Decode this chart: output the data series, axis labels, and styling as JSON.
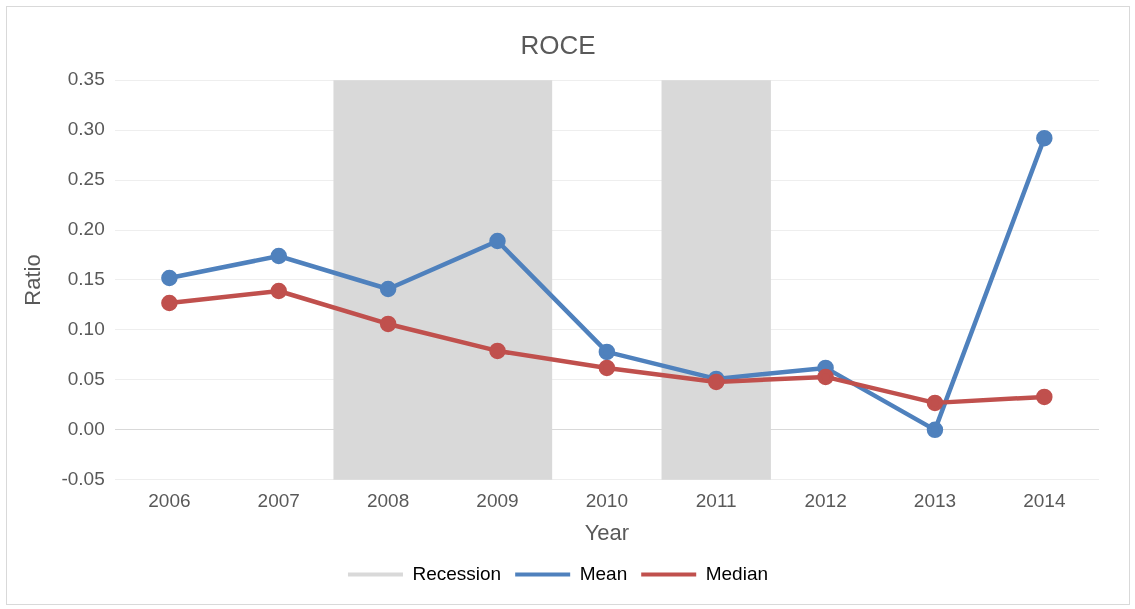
{
  "chart_data": {
    "type": "line",
    "title": "ROCE",
    "xlabel": "Year",
    "ylabel": "Ratio",
    "categories": [
      "2006",
      "2007",
      "2008",
      "2009",
      "2010",
      "2011",
      "2012",
      "2013",
      "2014"
    ],
    "series": [
      {
        "name": "Mean",
        "color": "#4f81bd",
        "values": [
          0.152,
          0.174,
          0.141,
          0.189,
          0.078,
          0.051,
          0.062,
          0.0,
          0.292
        ]
      },
      {
        "name": "Median",
        "color": "#c0504d",
        "values": [
          0.127,
          0.139,
          0.106,
          0.079,
          0.062,
          0.048,
          0.053,
          0.027,
          0.033
        ]
      }
    ],
    "bands": [
      {
        "axis": "x",
        "from": "2008",
        "to": "2009",
        "label": "Recession",
        "color": "#d9d9d9"
      },
      {
        "axis": "x",
        "from": "2011",
        "to": "2011",
        "color": "#d9d9d9"
      }
    ],
    "ylim": [
      -0.05,
      0.35
    ],
    "yticks": [
      {
        "value": -0.05,
        "label": "-0.05"
      },
      {
        "value": 0,
        "label": "0.00"
      },
      {
        "value": 0.05,
        "label": "0.05"
      },
      {
        "value": 0.1,
        "label": "0.10"
      },
      {
        "value": 0.15,
        "label": "0.15"
      },
      {
        "value": 0.2,
        "label": "0.20"
      },
      {
        "value": 0.25,
        "label": "0.25"
      },
      {
        "value": 0.3,
        "label": "0.30"
      },
      {
        "value": 0.35,
        "label": "0.35"
      }
    ],
    "grid": "y",
    "legend": "bottom",
    "marker": "circle",
    "line_style": "solid"
  }
}
